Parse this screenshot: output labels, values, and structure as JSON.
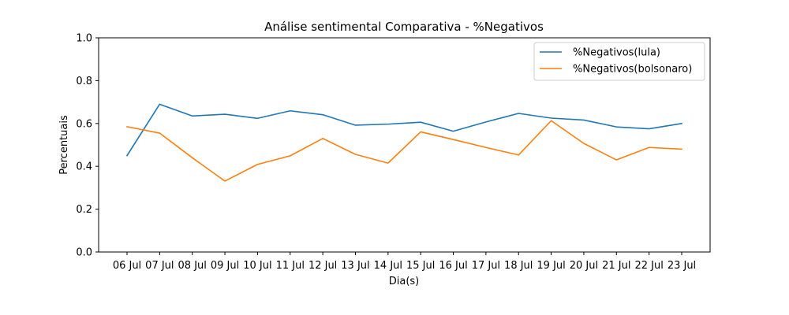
{
  "chart_data": {
    "type": "line",
    "title": "Análise sentimental Comparativa - %Negativos",
    "xlabel": "Dia(s)",
    "ylabel": "Percentuais",
    "ylim": [
      0.0,
      1.0
    ],
    "yticks": [
      "0.0",
      "0.2",
      "0.4",
      "0.6",
      "0.8",
      "1.0"
    ],
    "categories": [
      "06 Jul",
      "07 Jul",
      "08 Jul",
      "09 Jul",
      "10 Jul",
      "11 Jul",
      "12 Jul",
      "13 Jul",
      "14 Jul",
      "15 Jul",
      "16 Jul",
      "17 Jul",
      "18 Jul",
      "19 Jul",
      "20 Jul",
      "21 Jul",
      "22 Jul",
      "23 Jul"
    ],
    "series": [
      {
        "name": "%Negativos(lula)",
        "color": "#1f77b4",
        "values": [
          0.45,
          0.69,
          0.635,
          0.643,
          0.624,
          0.659,
          0.641,
          0.592,
          0.597,
          0.606,
          0.564,
          0.607,
          0.647,
          0.625,
          0.616,
          0.584,
          0.575,
          0.6
        ]
      },
      {
        "name": "%Negativos(bolsonaro)",
        "color": "#ff7f0e",
        "values": [
          0.585,
          0.555,
          0.44,
          0.331,
          0.409,
          0.449,
          0.53,
          0.456,
          0.415,
          0.561,
          0.525,
          0.488,
          0.453,
          0.613,
          0.507,
          0.43,
          0.488,
          0.48
        ]
      }
    ],
    "grid": false,
    "legend_position": "top-right"
  }
}
